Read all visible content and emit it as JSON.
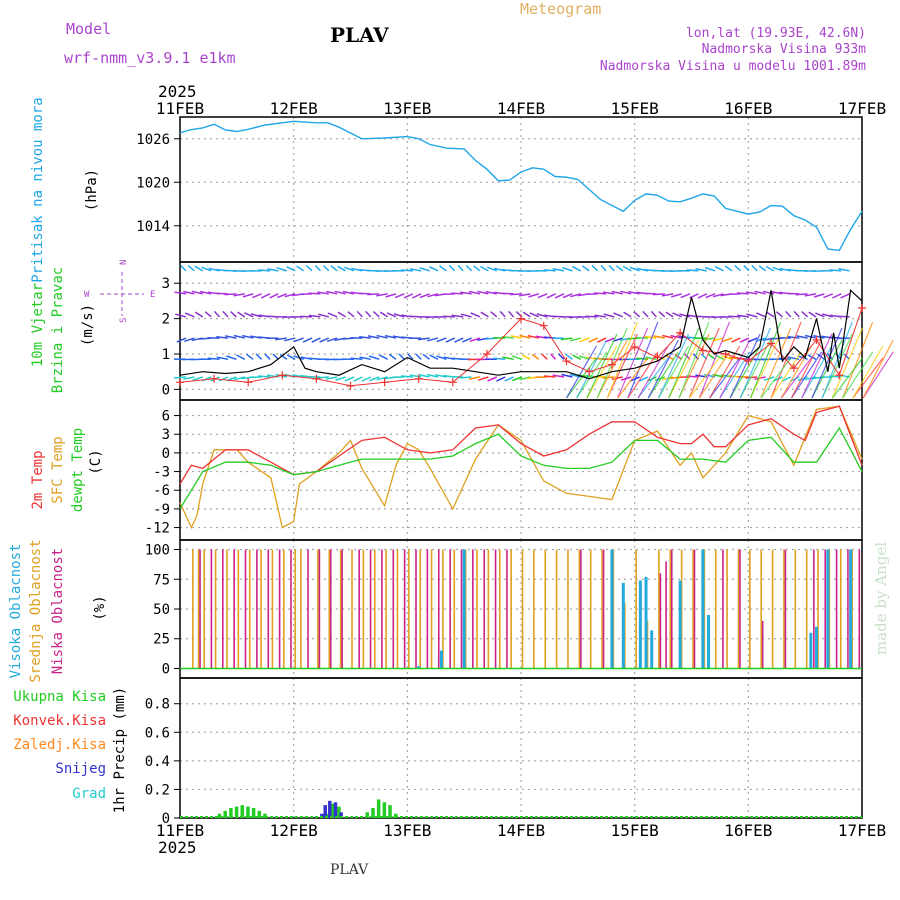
{
  "header": {
    "model_label": "Model",
    "model_name": "wrf-nmm_v3.9.1  e1km",
    "station": "PLAV",
    "title": "Meteogram",
    "lonlat": "lon,lat (19.93E, 42.6N)",
    "elevation": "Nadmorska Visina 933m",
    "model_elevation": "Nadmorska Visina u modelu 1001.89m",
    "year": "2025",
    "footer_station": "PLAV",
    "credit": "made by Angel"
  },
  "colors": {
    "pressure": "#1fa6e8",
    "wind_speed": "#000000",
    "wind_gust": "#ee3333",
    "t2m": "#ee3333",
    "sfc_temp": "#e0a020",
    "dewpoint": "#22cc22",
    "cloud_high": "#22aadd",
    "cloud_mid": "#e0a020",
    "cloud_low": "#cc2288",
    "precip_total": "#22cc22",
    "precip_conv": "#ee3333",
    "precip_frz": "#ff8822",
    "precip_snow": "#3333cc",
    "precip_grad": "#22cccc",
    "wind_legend": "#aa44cc",
    "grid": "#aaaaaa"
  },
  "chart_data": [
    {
      "type": "line",
      "panel": "pressure",
      "ylabel_1": "Pritisak na nivou mora",
      "ylabel_2": "(hPa)",
      "yticks": [
        "1014",
        "1020",
        "1026"
      ],
      "ylim": [
        1009,
        1029
      ],
      "x": [
        0,
        0.08,
        0.2,
        0.3,
        0.4,
        0.5,
        0.6,
        0.75,
        0.9,
        1.0,
        1.1,
        1.2,
        1.3,
        1.4,
        1.5,
        1.6,
        1.8,
        2.0,
        2.1,
        2.2,
        2.35,
        2.5,
        2.6,
        2.7,
        2.8,
        2.9,
        3.0,
        3.1,
        3.2,
        3.3,
        3.4,
        3.5,
        3.6,
        3.7,
        3.8,
        3.9,
        4.0,
        4.1,
        4.2,
        4.3,
        4.4,
        4.5,
        4.6,
        4.7,
        4.8,
        4.9,
        5.0,
        5.1,
        5.2,
        5.3,
        5.4,
        5.5,
        5.6,
        5.7,
        5.8,
        5.9,
        6.0
      ],
      "y": [
        1026.8,
        1027.2,
        1027.5,
        1028.0,
        1027.2,
        1027.0,
        1027.3,
        1027.9,
        1028.2,
        1028.4,
        1028.3,
        1028.2,
        1028.2,
        1027.6,
        1026.8,
        1026.0,
        1026.1,
        1026.3,
        1026.0,
        1025.2,
        1024.7,
        1024.6,
        1023.0,
        1021.8,
        1020.2,
        1020.3,
        1021.4,
        1022.0,
        1021.8,
        1020.8,
        1020.7,
        1020.4,
        1019.0,
        1017.6,
        1016.8,
        1016.0,
        1017.5,
        1018.4,
        1018.2,
        1017.4,
        1017.3,
        1017.8,
        1018.4,
        1018.1,
        1016.4,
        1016.0,
        1015.6,
        1015.9,
        1016.8,
        1016.7,
        1015.4,
        1014.8,
        1013.8,
        1010.8,
        1010.6,
        1013.5,
        1016.0
      ]
    },
    {
      "type": "line",
      "panel": "wind",
      "ylabel_1": "10m Vjetar",
      "ylabel_2": "Brzina i Pravac",
      "ylabel_3": "(m/s)",
      "yticks": [
        "0",
        "1",
        "2",
        "3"
      ],
      "ylim": [
        -0.3,
        3.6
      ],
      "barb_rows": [
        0.35,
        0.85,
        1.45,
        2.05,
        2.7,
        3.35
      ],
      "barb_colors": [
        "#22cccc",
        "#2266ee",
        "#3355dd",
        "#8833cc",
        "#aa33dd",
        "#22aaee"
      ],
      "compass": {
        "n": "N",
        "s": "S",
        "e": "E",
        "w": "W"
      },
      "series": [
        {
          "name": "speed",
          "x": [
            0,
            0.2,
            0.4,
            0.6,
            0.8,
            1.0,
            1.1,
            1.2,
            1.4,
            1.6,
            1.8,
            2.0,
            2.2,
            2.4,
            2.6,
            2.8,
            3.0,
            3.2,
            3.4,
            3.5,
            3.6,
            3.8,
            4.0,
            4.2,
            4.4,
            4.5,
            4.6,
            4.7,
            4.8,
            5.0,
            5.1,
            5.2,
            5.3,
            5.4,
            5.5,
            5.6,
            5.7,
            5.75,
            5.8,
            5.9,
            6.0
          ],
          "y": [
            0.4,
            0.5,
            0.45,
            0.5,
            0.7,
            1.2,
            0.6,
            0.5,
            0.4,
            0.7,
            0.5,
            0.9,
            0.6,
            0.6,
            0.5,
            0.4,
            0.5,
            0.5,
            0.5,
            0.4,
            0.3,
            0.5,
            0.6,
            0.8,
            1.2,
            2.6,
            1.4,
            1.0,
            1.1,
            0.9,
            1.2,
            2.8,
            0.8,
            1.2,
            0.9,
            2.0,
            0.5,
            1.6,
            0.6,
            2.8,
            2.5
          ]
        },
        {
          "name": "gust",
          "x": [
            0,
            0.3,
            0.6,
            0.9,
            1.2,
            1.5,
            1.8,
            2.1,
            2.4,
            2.7,
            3.0,
            3.2,
            3.4,
            3.6,
            3.8,
            4.0,
            4.2,
            4.4,
            4.6,
            4.8,
            5.0,
            5.2,
            5.4,
            5.6,
            5.8,
            6.0
          ],
          "y": [
            0.2,
            0.3,
            0.2,
            0.4,
            0.3,
            0.1,
            0.2,
            0.3,
            0.2,
            1.0,
            2.0,
            1.8,
            0.8,
            0.5,
            0.7,
            1.2,
            0.9,
            1.6,
            1.1,
            1.0,
            0.8,
            1.3,
            0.6,
            1.4,
            0.4,
            2.3
          ]
        }
      ]
    },
    {
      "type": "line",
      "panel": "temperature",
      "ylabel_1": "2m Temp",
      "ylabel_2": "SFC Temp",
      "ylabel_3": "dewpt Temp",
      "ylabel_4": "(C)",
      "yticks": [
        "-12",
        "-9",
        "-6",
        "-3",
        "0",
        "3",
        "6"
      ],
      "ylim": [
        -14,
        8.5
      ],
      "series": [
        {
          "name": "2m Temp",
          "x": [
            0,
            0.1,
            0.2,
            0.4,
            0.6,
            0.8,
            1.0,
            1.2,
            1.4,
            1.6,
            1.8,
            2.0,
            2.2,
            2.4,
            2.6,
            2.8,
            3.0,
            3.2,
            3.4,
            3.6,
            3.8,
            4.0,
            4.2,
            4.4,
            4.5,
            4.6,
            4.7,
            4.8,
            5.0,
            5.2,
            5.4,
            5.5,
            5.6,
            5.8,
            6.0
          ],
          "y": [
            -5,
            -2,
            -2.5,
            0.5,
            0.5,
            -1.5,
            -3.5,
            -3,
            -0.5,
            2,
            2.5,
            0.5,
            0,
            0.5,
            4,
            4.5,
            1.5,
            -0.5,
            0.5,
            3,
            5,
            5,
            2.5,
            1.5,
            1.5,
            3,
            1,
            1,
            4.5,
            5.5,
            3,
            2,
            6.5,
            7.5,
            -2
          ]
        },
        {
          "name": "SFC Temp",
          "x": [
            0,
            0.1,
            0.15,
            0.2,
            0.3,
            0.5,
            0.6,
            0.8,
            0.9,
            1.0,
            1.05,
            1.2,
            1.4,
            1.5,
            1.6,
            1.8,
            1.9,
            2.0,
            2.1,
            2.2,
            2.4,
            2.6,
            2.8,
            3.0,
            3.2,
            3.4,
            3.6,
            3.8,
            4.0,
            4.2,
            4.4,
            4.5,
            4.6,
            4.8,
            5.0,
            5.2,
            5.4,
            5.6,
            5.8,
            6.0
          ],
          "y": [
            -8,
            -12,
            -10,
            -5,
            0.5,
            0.5,
            -1.5,
            -4,
            -12,
            -11,
            -5,
            -3,
            0,
            2,
            -2.5,
            -8.5,
            -2,
            1.5,
            0.5,
            -2.5,
            -9,
            -1,
            4.5,
            2,
            -4.5,
            -6.5,
            -7,
            -7.5,
            2,
            3.5,
            -2,
            0,
            -4,
            0,
            6,
            5,
            -2,
            7,
            7.5,
            -1
          ]
        },
        {
          "name": "dewpt Temp",
          "x": [
            0,
            0.1,
            0.2,
            0.4,
            0.6,
            0.8,
            1.0,
            1.2,
            1.4,
            1.6,
            1.8,
            2.0,
            2.2,
            2.4,
            2.6,
            2.8,
            3.0,
            3.2,
            3.4,
            3.6,
            3.8,
            4.0,
            4.2,
            4.4,
            4.6,
            4.8,
            5.0,
            5.2,
            5.4,
            5.6,
            5.8,
            6.0
          ],
          "y": [
            -9,
            -6,
            -3,
            -1.5,
            -1.5,
            -2,
            -3.5,
            -3,
            -2,
            -1,
            -1,
            -1,
            -1,
            -0.5,
            1.5,
            3,
            -0.5,
            -2,
            -2.5,
            -2.5,
            -1.5,
            2,
            2,
            -1,
            -1,
            -1.5,
            2,
            2.5,
            -1.5,
            -1.5,
            4,
            -3
          ]
        }
      ]
    },
    {
      "type": "bar",
      "panel": "clouds",
      "ylabel_1": "Visoka Oblacnost",
      "ylabel_2": "Srednja Oblacnost",
      "ylabel_3": "Niska Oblacnost",
      "ylabel_4": "(%)",
      "yticks": [
        "0",
        "25",
        "50",
        "75",
        "100"
      ],
      "ylim": [
        -8,
        108
      ],
      "series": [
        {
          "name": "Visoka Oblacnost",
          "x": [
            2.1,
            2.3,
            2.5,
            3.8,
            3.9,
            4.05,
            4.1,
            4.15,
            4.4,
            4.6,
            4.65,
            5.55,
            5.6,
            5.7,
            5.9
          ],
          "values": [
            2,
            15,
            100,
            100,
            72,
            74,
            77,
            32,
            74,
            100,
            45,
            30,
            35,
            100,
            100
          ]
        },
        {
          "name": "Srednja Oblacnost",
          "x": [
            0.1,
            0.15,
            0.2,
            0.3,
            0.4,
            0.5,
            0.6,
            0.7,
            0.8,
            0.9,
            1.0,
            1.05,
            1.2,
            1.3,
            1.4,
            1.5,
            1.6,
            1.7,
            1.8,
            1.9,
            2.0,
            2.1,
            2.2,
            2.3,
            2.4,
            2.5,
            2.6,
            2.7,
            2.8,
            2.9,
            3.0,
            3.1,
            3.2,
            3.3,
            3.4,
            3.5,
            3.6,
            3.7,
            3.8,
            3.9,
            4.0,
            4.1,
            4.2,
            4.3,
            4.4,
            4.5,
            4.6,
            4.7,
            4.8,
            4.9,
            5.0,
            5.1,
            5.2,
            5.3,
            5.4,
            5.5,
            5.6,
            5.7,
            5.8,
            5.9
          ],
          "values": [
            100,
            100,
            100,
            100,
            100,
            100,
            100,
            100,
            100,
            100,
            100,
            100,
            100,
            100,
            100,
            100,
            100,
            100,
            100,
            100,
            100,
            100,
            100,
            100,
            100,
            100,
            100,
            100,
            100,
            100,
            100,
            100,
            100,
            100,
            100,
            100,
            100,
            100,
            100,
            55,
            100,
            40,
            100,
            100,
            100,
            100,
            100,
            100,
            100,
            100,
            100,
            100,
            100,
            100,
            100,
            100,
            100,
            100,
            100,
            100
          ]
        },
        {
          "name": "Niska Oblacnost",
          "x": [
            0.15,
            0.25,
            0.35,
            0.45,
            0.55,
            0.65,
            0.75,
            0.85,
            0.95,
            1.1,
            1.2,
            1.3,
            1.4,
            1.55,
            1.65,
            1.75,
            1.85,
            1.95,
            2.05,
            2.15,
            2.25,
            2.35,
            2.45,
            2.55,
            2.65,
            2.75,
            2.85,
            3.5,
            3.7,
            4.2,
            4.25,
            4.3,
            4.5,
            4.75,
            4.9,
            5.1,
            5.3,
            5.55,
            5.65,
            5.75,
            5.85,
            5.95
          ],
          "values": [
            100,
            100,
            100,
            100,
            100,
            100,
            100,
            100,
            100,
            100,
            100,
            100,
            100,
            100,
            100,
            100,
            100,
            100,
            100,
            100,
            100,
            100,
            100,
            100,
            100,
            100,
            100,
            100,
            100,
            80,
            90,
            100,
            100,
            100,
            100,
            40,
            100,
            100,
            100,
            100,
            100,
            100
          ]
        }
      ]
    },
    {
      "type": "bar",
      "panel": "precip",
      "ylabel_1": "1hr Precip (mm)",
      "yticks": [
        "0",
        "0.2",
        "0.4",
        "0.6",
        "0.8"
      ],
      "ylim": [
        0,
        0.98
      ],
      "legend": [
        "Ukupna Kisa",
        "Konvek.Kisa",
        "Zaledj.Kisa",
        "Snijeg",
        "Grad"
      ],
      "series": [
        {
          "name": "Ukupna Kisa",
          "x": [
            0.35,
            0.4,
            0.45,
            0.5,
            0.55,
            0.6,
            0.65,
            0.7,
            0.75,
            1.3,
            1.35,
            1.4,
            1.65,
            1.7,
            1.75,
            1.8,
            1.85,
            1.9
          ],
          "values": [
            0.03,
            0.05,
            0.07,
            0.08,
            0.09,
            0.08,
            0.07,
            0.05,
            0.03,
            0.03,
            0.1,
            0.08,
            0.04,
            0.07,
            0.13,
            0.11,
            0.09,
            0.03
          ]
        },
        {
          "name": "Snijeg",
          "x": [
            1.25,
            1.28,
            1.32,
            1.37,
            1.42
          ],
          "values": [
            0.03,
            0.09,
            0.12,
            0.11,
            0.04
          ]
        }
      ],
      "x_labels": [
        "11FEB",
        "12FEB",
        "13FEB",
        "14FEB",
        "15FEB",
        "16FEB",
        "17FEB"
      ]
    }
  ]
}
